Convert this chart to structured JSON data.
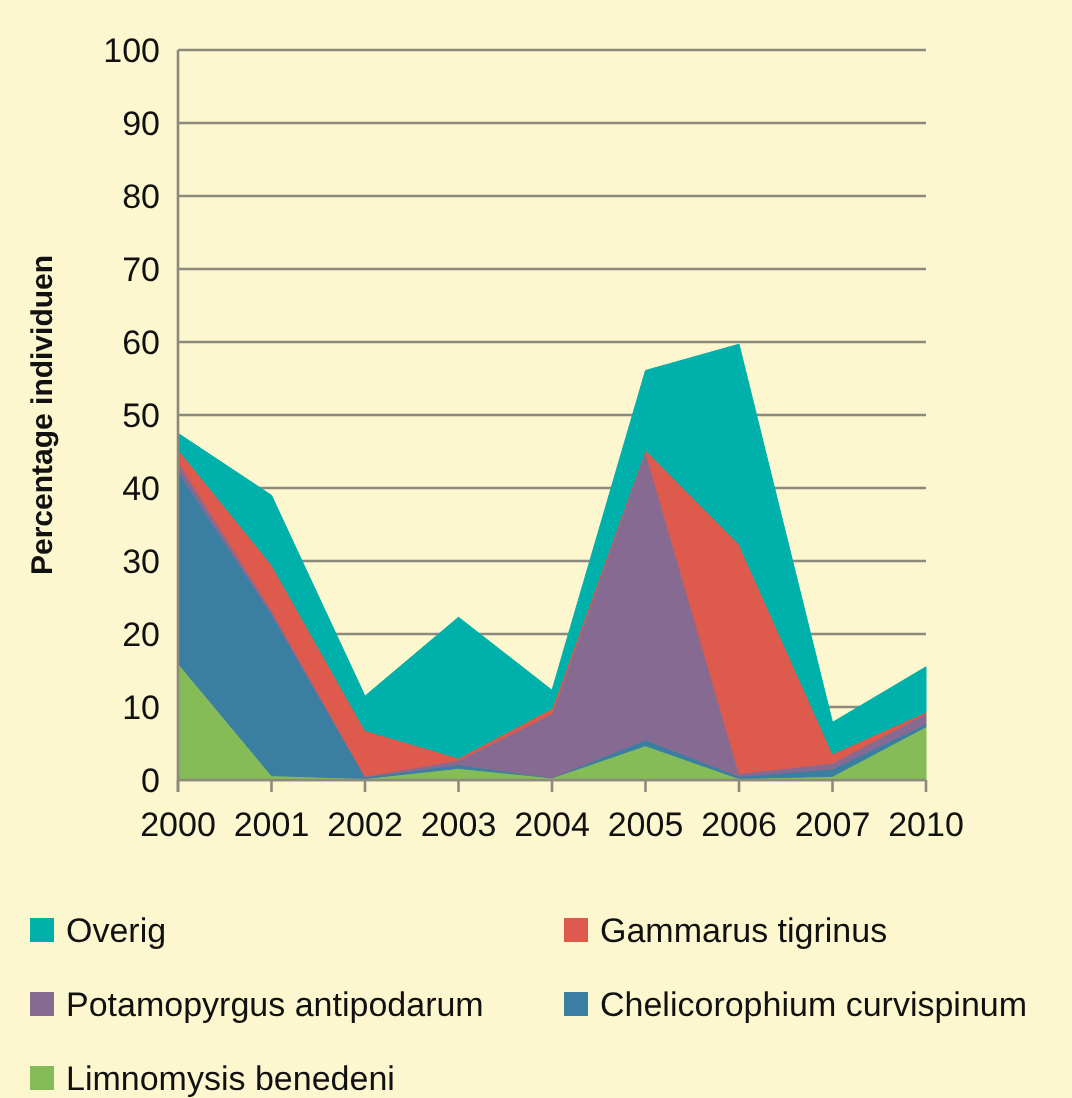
{
  "chart_data": {
    "type": "area",
    "stacked": true,
    "ylabel": "Percentage individuen",
    "categories": [
      "2000",
      "2001",
      "2002",
      "2003",
      "2004",
      "2005",
      "2006",
      "2007",
      "2010"
    ],
    "ylim": [
      0,
      100
    ],
    "yticks": [
      0,
      10,
      20,
      30,
      40,
      50,
      60,
      70,
      80,
      90,
      100
    ],
    "grid": "y",
    "legend": "bottom",
    "series": [
      {
        "name": "Limnomysis benedeni",
        "color": "#86bc57",
        "values": [
          16,
          0.6,
          0.2,
          1.6,
          0.3,
          4.7,
          0.2,
          0.5,
          7.3
        ]
      },
      {
        "name": "Chelicorophium curvispinum",
        "color": "#3a7ea1",
        "values": [
          26.3,
          22.1,
          0.2,
          0.5,
          0,
          0.8,
          0.3,
          1.0,
          0.4
        ]
      },
      {
        "name": "Potamopyrgus antipodarum",
        "color": "#866a92",
        "values": [
          1.3,
          0.5,
          0.1,
          0.6,
          8.8,
          39.5,
          0.4,
          0.8,
          1.4
        ]
      },
      {
        "name": "Gammarus tigrinus",
        "color": "#dd5a4c",
        "values": [
          1.7,
          6.3,
          6.3,
          0.3,
          0.7,
          0.2,
          31.4,
          1.3,
          0.2
        ]
      },
      {
        "name": "Overig",
        "color": "#00b0aa",
        "values": [
          2.2,
          9.5,
          4.7,
          19.3,
          2.5,
          10.9,
          27.4,
          4.3,
          6.2
        ]
      }
    ]
  }
}
